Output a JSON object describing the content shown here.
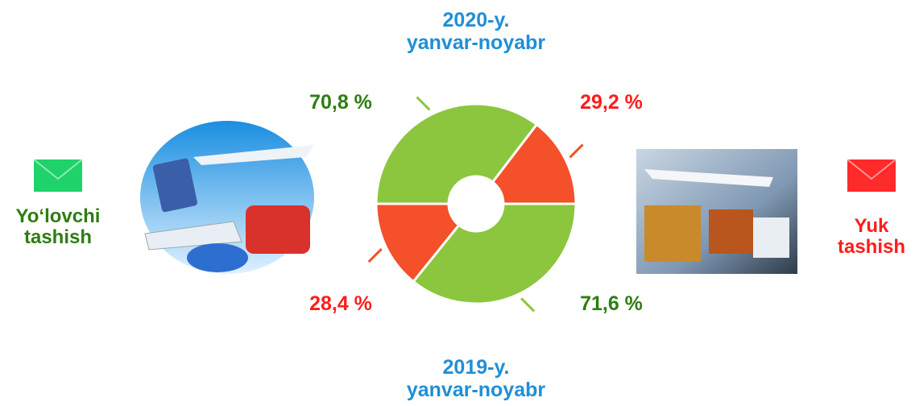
{
  "chart_data": {
    "type": "donut",
    "categories": [
      "Yo‘lovchi\ntashish",
      "Yuk\ntashish"
    ],
    "colors": [
      "#8cc63e",
      "#f4502a"
    ],
    "legend_colors": [
      "#1fd26a",
      "#ff2a2a"
    ],
    "series": [
      {
        "name": "2020-y.\nyanvar-noyabr",
        "values": [
          70.8,
          29.2
        ],
        "value_labels": [
          "70,8 %",
          "29,2 %"
        ]
      },
      {
        "name": "2019-y.\nyanvar-noyabr",
        "values": [
          71.6,
          28.4
        ],
        "value_labels": [
          "71,6 %",
          "28,4 %"
        ]
      }
    ]
  }
}
